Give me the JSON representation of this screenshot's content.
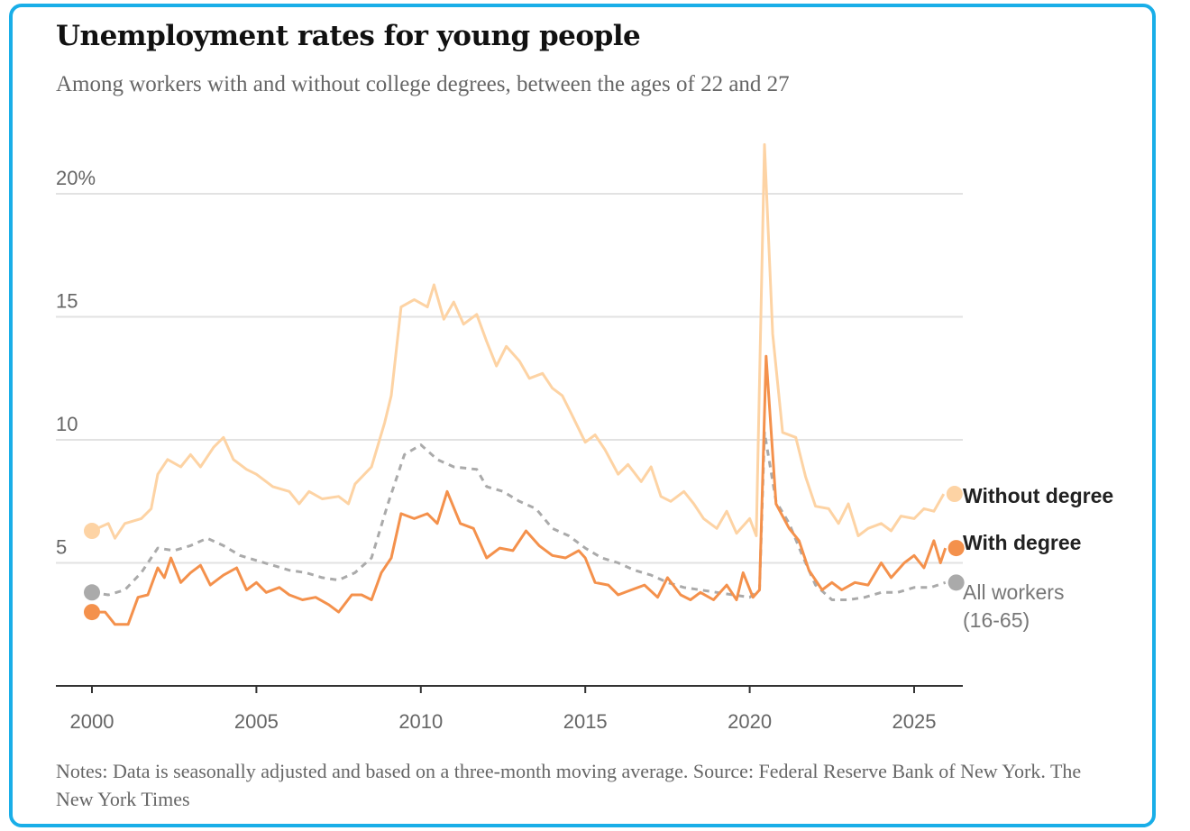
{
  "chart_data": {
    "type": "line",
    "title": "Unemployment rates for young people",
    "subtitle": "Among workers with and without college degrees, between the ages of 22 and 27",
    "notes": "Notes: Data is seasonally adjusted and based on a three-month moving average.  Source: Federal Reserve Bank of New York.  The New York Times",
    "xlim": [
      2000,
      2026
    ],
    "ylim": [
      0,
      22
    ],
    "x_ticks": [
      2000,
      2005,
      2010,
      2015,
      2020,
      2025
    ],
    "x_tick_labels": [
      "2000",
      "2005",
      "2010",
      "2015",
      "2020",
      "2025"
    ],
    "y_ticks": [
      5,
      10,
      15,
      20
    ],
    "y_tick_labels": [
      "5",
      "10",
      "15",
      "20%"
    ],
    "grid": true,
    "legend": "right, at line ends",
    "series": [
      {
        "name": "Without degree",
        "color": "#fdd3a4",
        "style": "solid",
        "x": [
          2000,
          2000.5,
          2000.7,
          2001,
          2001.5,
          2001.8,
          2002,
          2002.3,
          2002.7,
          2003,
          2003.3,
          2003.7,
          2004,
          2004.3,
          2004.7,
          2005,
          2005.5,
          2006,
          2006.3,
          2006.6,
          2007,
          2007.5,
          2007.8,
          2008,
          2008.5,
          2008.9,
          2009.1,
          2009.4,
          2009.8,
          2010.2,
          2010.4,
          2010.7,
          2011,
          2011.3,
          2011.7,
          2012,
          2012.3,
          2012.6,
          2013,
          2013.3,
          2013.7,
          2014,
          2014.3,
          2014.6,
          2015,
          2015.3,
          2015.6,
          2016,
          2016.3,
          2016.7,
          2017,
          2017.3,
          2017.6,
          2018,
          2018.3,
          2018.6,
          2019,
          2019.3,
          2019.6,
          2020,
          2020.2,
          2020.45,
          2020.7,
          2021,
          2021.4,
          2021.7,
          2022,
          2022.4,
          2022.7,
          2023,
          2023.3,
          2023.6,
          2024,
          2024.3,
          2024.6,
          2025,
          2025.3,
          2025.6,
          2025.9
        ],
        "values": [
          6.3,
          6.6,
          6.0,
          6.6,
          6.8,
          7.2,
          8.6,
          9.2,
          8.9,
          9.4,
          8.9,
          9.7,
          10.1,
          9.2,
          8.8,
          8.6,
          8.1,
          7.9,
          7.4,
          7.9,
          7.6,
          7.7,
          7.4,
          8.2,
          8.9,
          10.7,
          11.8,
          15.4,
          15.7,
          15.4,
          16.3,
          14.9,
          15.6,
          14.7,
          15.1,
          14.0,
          13.0,
          13.8,
          13.2,
          12.5,
          12.7,
          12.1,
          11.8,
          11.0,
          9.9,
          10.2,
          9.6,
          8.6,
          9.0,
          8.3,
          8.9,
          7.7,
          7.5,
          7.9,
          7.4,
          6.8,
          6.4,
          7.1,
          6.2,
          6.8,
          6.1,
          22.0,
          14.3,
          10.3,
          10.1,
          8.5,
          7.3,
          7.2,
          6.6,
          7.4,
          6.1,
          6.4,
          6.6,
          6.3,
          6.9,
          6.8,
          7.2,
          7.1,
          7.8
        ]
      },
      {
        "name": "With degree",
        "color": "#f4914c",
        "style": "solid",
        "x": [
          2000,
          2000.4,
          2000.7,
          2001.1,
          2001.4,
          2001.7,
          2002,
          2002.2,
          2002.4,
          2002.7,
          2003,
          2003.3,
          2003.6,
          2004,
          2004.4,
          2004.7,
          2005,
          2005.3,
          2005.7,
          2006,
          2006.4,
          2006.8,
          2007.2,
          2007.5,
          2007.9,
          2008.2,
          2008.5,
          2008.8,
          2009.1,
          2009.4,
          2009.8,
          2010.2,
          2010.5,
          2010.8,
          2011.2,
          2011.6,
          2012,
          2012.4,
          2012.8,
          2013.2,
          2013.6,
          2014,
          2014.4,
          2014.8,
          2015,
          2015.3,
          2015.7,
          2016,
          2016.4,
          2016.8,
          2017.2,
          2017.5,
          2017.9,
          2018.2,
          2018.5,
          2018.9,
          2019.3,
          2019.6,
          2019.8,
          2020.1,
          2020.3,
          2020.5,
          2020.8,
          2021.2,
          2021.5,
          2021.8,
          2022.2,
          2022.5,
          2022.8,
          2023.2,
          2023.6,
          2024,
          2024.3,
          2024.7,
          2025,
          2025.3,
          2025.6,
          2025.8,
          2025.95
        ],
        "values": [
          3.0,
          3.0,
          2.5,
          2.5,
          3.6,
          3.7,
          4.8,
          4.4,
          5.2,
          4.2,
          4.6,
          4.9,
          4.1,
          4.5,
          4.8,
          3.9,
          4.2,
          3.8,
          4.0,
          3.7,
          3.5,
          3.6,
          3.3,
          3.0,
          3.7,
          3.7,
          3.5,
          4.6,
          5.2,
          7.0,
          6.8,
          7.0,
          6.6,
          7.9,
          6.6,
          6.4,
          5.2,
          5.6,
          5.5,
          6.3,
          5.7,
          5.3,
          5.2,
          5.5,
          5.2,
          4.2,
          4.1,
          3.7,
          3.9,
          4.1,
          3.6,
          4.4,
          3.7,
          3.5,
          3.8,
          3.5,
          4.1,
          3.5,
          4.6,
          3.6,
          3.9,
          13.4,
          7.4,
          6.4,
          5.9,
          4.7,
          3.9,
          4.2,
          3.9,
          4.2,
          4.1,
          5.0,
          4.4,
          5.0,
          5.3,
          4.8,
          5.9,
          5.0,
          5.6
        ]
      },
      {
        "name": "All workers (16-65)",
        "color": "#aaaaaa",
        "style": "dashed",
        "x": [
          2000,
          2000.5,
          2001,
          2001.5,
          2002,
          2002.5,
          2003,
          2003.5,
          2004,
          2004.5,
          2005,
          2005.5,
          2006,
          2006.5,
          2007,
          2007.5,
          2008,
          2008.5,
          2009,
          2009.5,
          2010,
          2010.5,
          2011,
          2011.7,
          2012,
          2012.5,
          2013,
          2013.5,
          2014,
          2014.5,
          2015,
          2015.5,
          2016,
          2016.5,
          2017,
          2017.5,
          2018,
          2018.5,
          2019,
          2019.5,
          2020,
          2020.3,
          2020.45,
          2020.8,
          2021.2,
          2021.6,
          2022,
          2022.5,
          2023,
          2023.5,
          2024,
          2024.5,
          2025,
          2025.5,
          2025.95
        ],
        "values": [
          3.8,
          3.7,
          3.9,
          4.6,
          5.6,
          5.5,
          5.7,
          6.0,
          5.7,
          5.3,
          5.1,
          4.9,
          4.7,
          4.6,
          4.4,
          4.3,
          4.6,
          5.2,
          7.4,
          9.4,
          9.8,
          9.2,
          8.9,
          8.8,
          8.1,
          7.9,
          7.5,
          7.2,
          6.4,
          6.1,
          5.6,
          5.2,
          5.0,
          4.7,
          4.5,
          4.2,
          4.0,
          3.9,
          3.8,
          3.7,
          3.6,
          3.9,
          10.3,
          7.5,
          6.6,
          5.3,
          4.1,
          3.5,
          3.5,
          3.6,
          3.8,
          3.8,
          4.0,
          4.0,
          4.2
        ]
      }
    ],
    "legend_labels": {
      "without": "Without degree",
      "with": "With degree",
      "all_line1": "All workers",
      "all_line2": "(16-65)"
    }
  }
}
